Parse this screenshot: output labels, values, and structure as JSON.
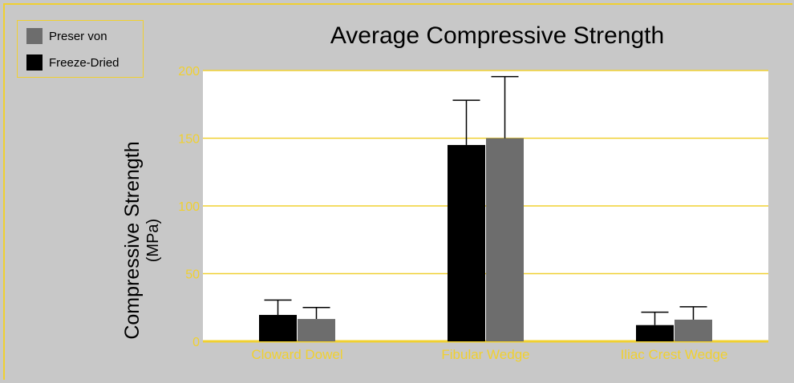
{
  "chart_data": {
    "type": "bar",
    "title": "Average Compressive Strength",
    "ylabel": "Compressive Strength",
    "ylabel_unit": "(MPa)",
    "xlabel": "",
    "categories": [
      "Cloward Dowel",
      "Fibular Wedge",
      "Iliac Crest Wedge"
    ],
    "yticks": [
      0,
      50,
      100,
      150,
      200
    ],
    "ylim": [
      0,
      200
    ],
    "grid": true,
    "legend_position": "top-left",
    "series": [
      {
        "name": "Freeze-Dried",
        "color": "#000000",
        "values": [
          19.5,
          145,
          12
        ],
        "errors": [
          11,
          33,
          9.5
        ]
      },
      {
        "name": "Preser von",
        "color": "#6d6d6d",
        "values": [
          16.5,
          150,
          16
        ],
        "errors": [
          8.5,
          45.5,
          9.5
        ]
      }
    ],
    "colors": {
      "background": "#c8c8c8",
      "plot_area": "#ffffff",
      "accent": "#f0d030"
    }
  },
  "legend": {
    "items": [
      {
        "label": "Preser von",
        "color": "#6d6d6d"
      },
      {
        "label": "Freeze-Dried",
        "color": "#000000"
      }
    ]
  }
}
